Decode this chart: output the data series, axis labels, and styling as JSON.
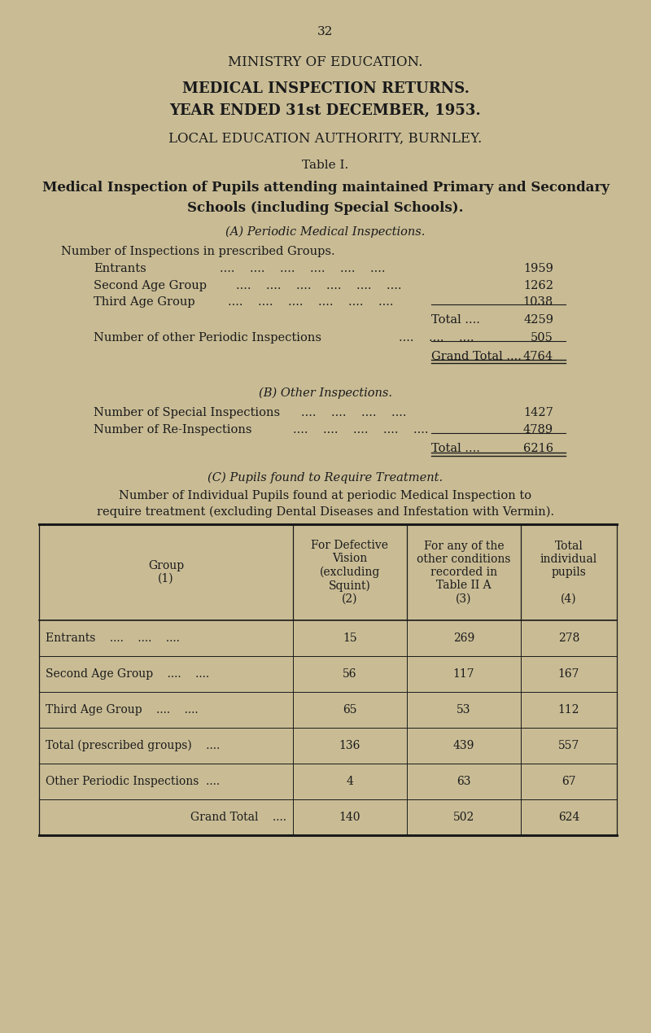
{
  "bg_color": "#c9bc95",
  "text_color": "#1a1a1a",
  "page_number": "32",
  "title1": "MINISTRY OF EDUCATION.",
  "title2": "MEDICAL INSPECTION RETURNS.",
  "title3": "YEAR ENDED 31st DECEMBER, 1953.",
  "title4": "LOCAL EDUCATION AUTHORITY, BURNLEY.",
  "table_title": "Table I.",
  "subtitle1": "Medical Inspection of Pupils attending maintained Primary and Secondary",
  "subtitle2": "Schools (including Special Schools).",
  "section_a": "(A) Periodic Medical Inspections.",
  "section_a_sub": "Number of Inspections in prescribed Groups.",
  "entrants_label": "Entrants",
  "entrants_val": "1959",
  "second_age_label": "Second Age Group",
  "second_age_val": "1262",
  "third_age_label": "Third Age Group",
  "third_age_val": "1038",
  "total_label": "Total ....",
  "total_val": "4259",
  "other_periodic_label": "Number of other Periodic Inspections",
  "other_periodic_val": "505",
  "grand_total_label": "Grand Total ....",
  "grand_total_val": "4764",
  "section_b": "(B) Other Inspections.",
  "special_insp_label": "Number of Special Inspections",
  "special_insp_val": "1427",
  "reinsp_label": "Number of Re-Inspections",
  "reinsp_val": "4789",
  "total_b_label": "Total ....",
  "total_b_val": "6216",
  "section_c": "(C) Pupils found to Require Treatment.",
  "section_c_body1": "Number of Individual Pupils found at periodic Medical Inspection to",
  "section_c_body2": "require treatment (excluding Dental Diseases and Infestation with Vermin).",
  "table_col0_header": "Group\n(1)",
  "table_header1": "For Defective\nVision\n(excluding\nSquint)\n(2)",
  "table_header2": "For any of the\nother conditions\nrecorded in\nTable II A\n(3)",
  "table_header3": "Total\nindividual\npupils\n\n(4)",
  "table_rows": [
    [
      "Entrants    ....    ....    ....",
      "15",
      "269",
      "278"
    ],
    [
      "Second Age Group    ....    ....",
      "56",
      "117",
      "167"
    ],
    [
      "Third Age Group    ....    ....",
      "65",
      "53",
      "112"
    ],
    [
      "Total (prescribed groups)    ....",
      "136",
      "439",
      "557"
    ],
    [
      "Other Periodic Inspections  ....",
      "4",
      "63",
      "67"
    ],
    [
      "Grand Total    ....",
      "140",
      "502",
      "624"
    ]
  ]
}
